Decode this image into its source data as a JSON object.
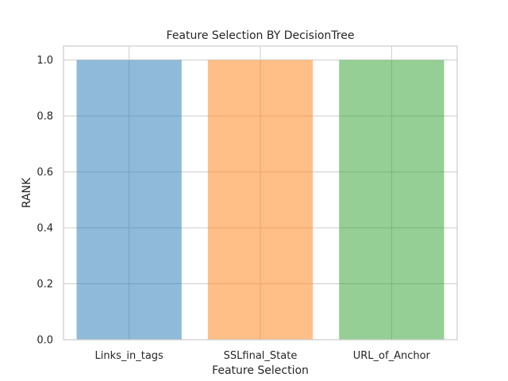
{
  "chart_data": {
    "type": "bar",
    "title": "Feature Selection BY DecisionTree",
    "xlabel": "Feature Selection",
    "ylabel": "RANK",
    "categories": [
      "Links_in_tags",
      "SSLfinal_State",
      "URL_of_Anchor"
    ],
    "values": [
      1.0,
      1.0,
      1.0
    ],
    "bar_colors": [
      "#1f77b4",
      "#ff7f0e",
      "#2ca02c"
    ],
    "bar_alpha": 0.5,
    "ylim": [
      0,
      1.05
    ],
    "yticks": [
      0.0,
      0.2,
      0.4,
      0.6,
      0.8,
      1.0
    ],
    "ytick_labels": [
      "0.0",
      "0.2",
      "0.4",
      "0.6",
      "0.8",
      "1.0"
    ],
    "grid": true
  }
}
